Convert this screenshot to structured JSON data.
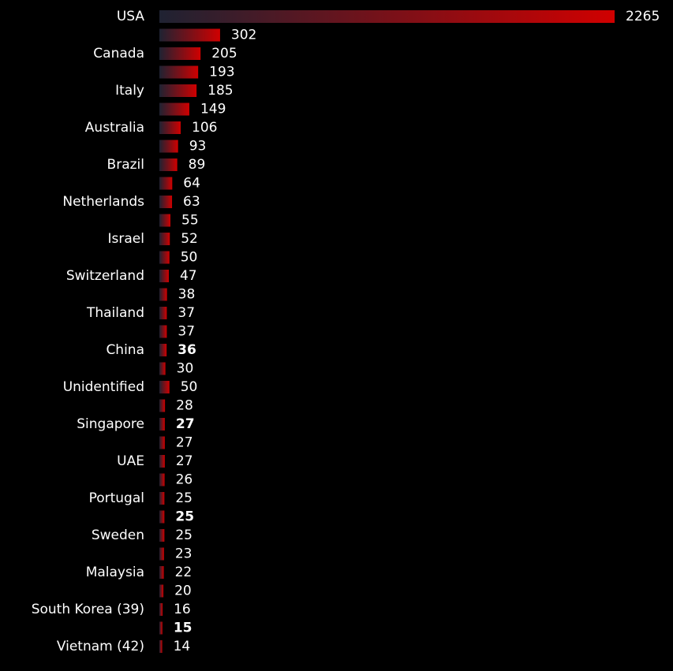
{
  "chart_data": {
    "type": "hbar",
    "categories": [
      "USA",
      null,
      "Canada",
      null,
      "Italy",
      null,
      "Australia",
      null,
      "Brazil",
      null,
      "Netherlands",
      null,
      "Israel",
      null,
      "Switzerland",
      null,
      "Thailand",
      null,
      "China",
      null,
      "Unidentified",
      null,
      "Singapore",
      null,
      "UAE",
      null,
      "Portugal",
      null,
      "Sweden",
      null,
      "Malaysia",
      null,
      "South Korea (39)",
      null,
      "Vietnam (42)"
    ],
    "values": [
      2265,
      302,
      205,
      193,
      185,
      149,
      106,
      93,
      89,
      64,
      63,
      55,
      52,
      50,
      47,
      38,
      37,
      37,
      36,
      30,
      50,
      28,
      27,
      27,
      27,
      26,
      25,
      25,
      25,
      23,
      22,
      20,
      16,
      15,
      14
    ],
    "colors": [
      "#1f2232",
      "#d00000"
    ],
    "value_label_colors": [
      "#ffffff",
      "#ffffff",
      "#ffffff",
      "#ffffff",
      "#ffffff",
      "#ffffff",
      "#ffffff",
      "#ffffff",
      "#ffffff",
      "#ffffff",
      "#ffffff",
      "#ffffff",
      "#ffffff",
      "#ffffff",
      "#ffffff",
      "#ffffff",
      "#ffffff",
      "#ffffff",
      "#e8898c",
      "#ffffff",
      "#777777",
      "#ffffff",
      "#e8898c",
      "#ffffff",
      "#ffffff",
      "#ffffff",
      "#ffffff",
      "#e8898c",
      "#ffffff",
      "#ffffff",
      "#ffffff",
      "#ffffff",
      "#ffffff",
      "#e8898c",
      "#ffffff"
    ]
  }
}
